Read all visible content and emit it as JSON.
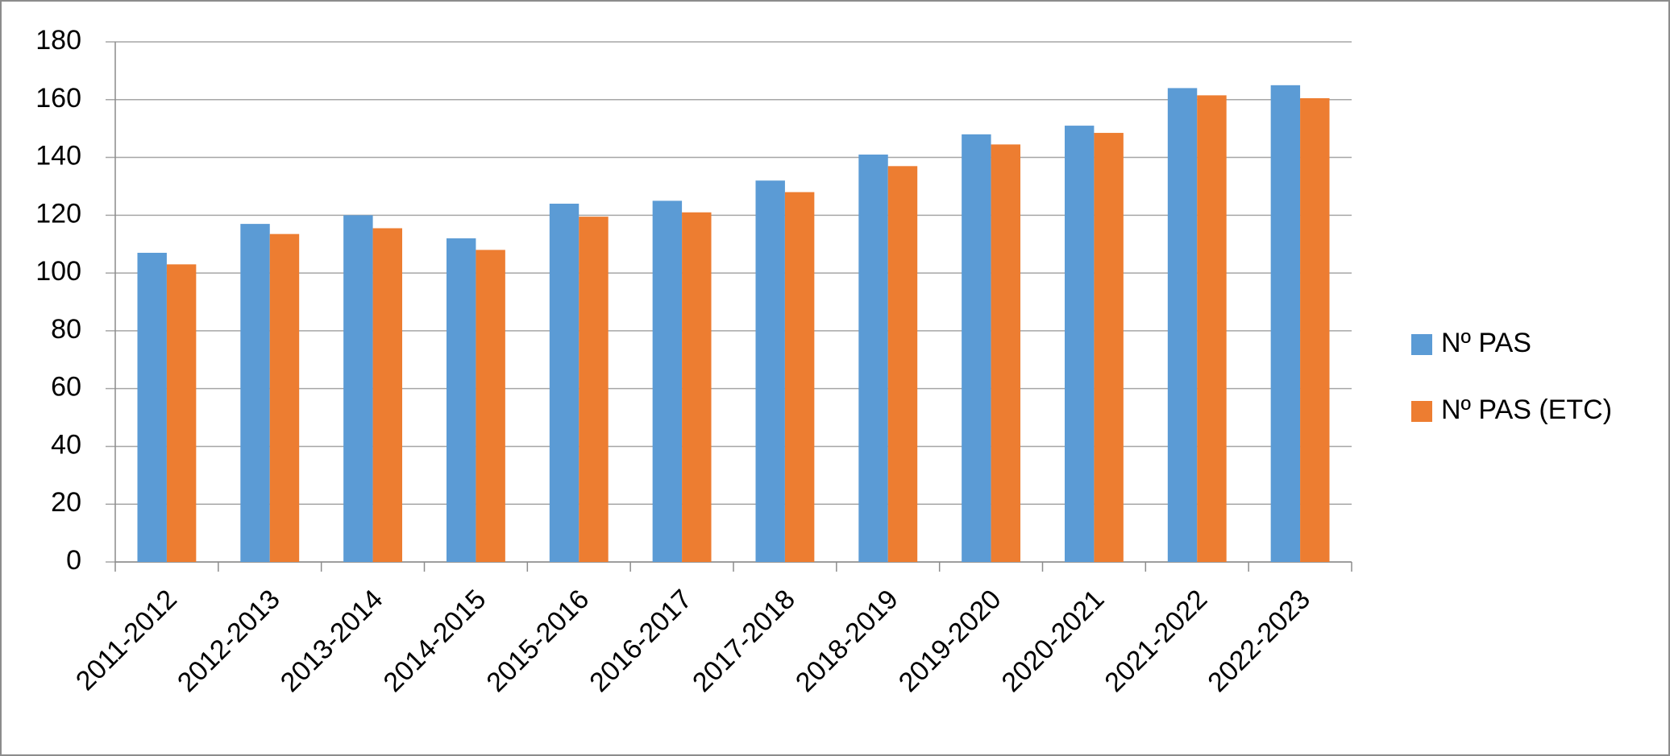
{
  "chart_data": {
    "type": "bar",
    "categories": [
      "2011-2012",
      "2012-2013",
      "2013-2014",
      "2014-2015",
      "2015-2016",
      "2016-2017",
      "2017-2018",
      "2018-2019",
      "2019-2020",
      "2020-2021",
      "2021-2022",
      "2022-2023"
    ],
    "series": [
      {
        "name": "Nº PAS",
        "color": "#5b9bd5",
        "values": [
          107,
          117,
          120,
          112,
          124,
          125,
          132,
          141,
          148,
          151,
          164,
          165
        ]
      },
      {
        "name": "Nº PAS (ETC)",
        "color": "#ed7d31",
        "values": [
          103,
          113.5,
          115.5,
          108,
          119.5,
          121,
          128,
          137,
          144.5,
          148.5,
          161.5,
          160.5
        ]
      }
    ],
    "ylim": [
      0,
      180
    ],
    "yticks": [
      0,
      20,
      40,
      60,
      80,
      100,
      120,
      140,
      160,
      180
    ],
    "grid": true,
    "legend": "right"
  }
}
